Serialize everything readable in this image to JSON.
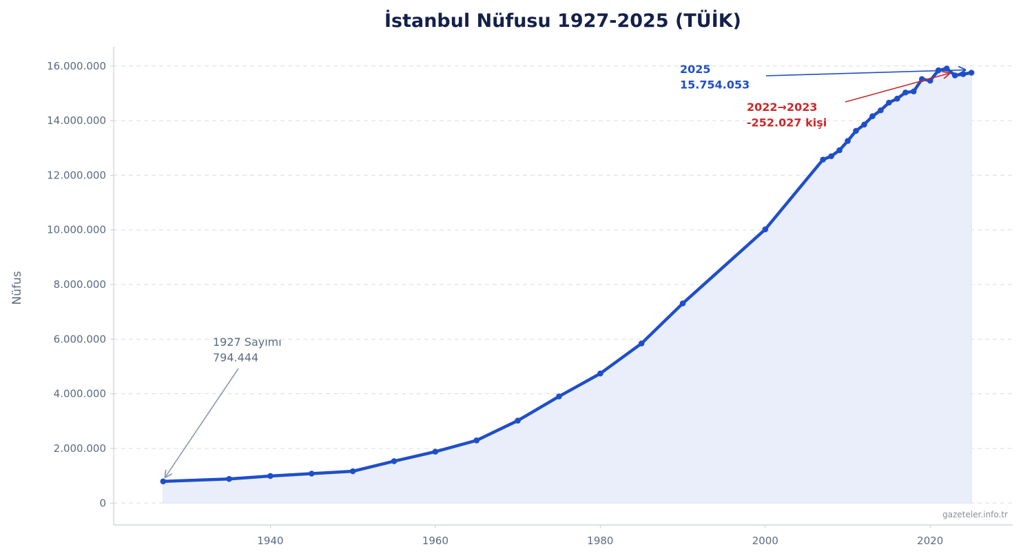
{
  "chart_data": {
    "type": "line",
    "title": "İstanbul Nüfusu 1927-2025 (TÜİK)",
    "xlabel": "",
    "ylabel": "Nüfus",
    "xlim": [
      1921,
      2030
    ],
    "ylim": [
      -800000,
      16700000
    ],
    "x_ticks": [
      1940,
      1960,
      1980,
      2000,
      2020
    ],
    "y_ticks": [
      0,
      2000000,
      4000000,
      6000000,
      8000000,
      10000000,
      12000000,
      14000000,
      16000000
    ],
    "y_tick_labels": [
      "0",
      "2.000.000",
      "4.000.000",
      "6.000.000",
      "8.000.000",
      "10.000.000",
      "12.000.000",
      "14.000.000",
      "16.000.000"
    ],
    "grid": "horizontal dashed",
    "series": [
      {
        "x": [
          1927,
          1935,
          1940,
          1945,
          1950,
          1955,
          1960,
          1965,
          1970,
          1975,
          1980,
          1985,
          1990,
          2000,
          2007,
          2008,
          2009,
          2010,
          2011,
          2012,
          2013,
          2014,
          2015,
          2016,
          2017,
          2018,
          2019,
          2020,
          2021,
          2022,
          2023,
          2024,
          2025
        ],
        "y": [
          794444,
          883599,
          991237,
          1078399,
          1166477,
          1533822,
          1882092,
          2293823,
          3019032,
          3904588,
          4741890,
          5842985,
          7309190,
          10018735,
          12573836,
          12697164,
          12915158,
          13255685,
          13624240,
          13854740,
          14160467,
          14377018,
          14657434,
          14804116,
          15029231,
          15067724,
          15519267,
          15462452,
          15840900,
          15907951,
          15655924,
          15701602,
          15754053
        ]
      }
    ],
    "annotations": [
      {
        "lines": [
          "1927 Sayımı",
          "794.444"
        ],
        "x": 1927,
        "y": 794444
      },
      {
        "lines": [
          "2025",
          "15.754.053"
        ],
        "x": 2025,
        "y": 15754053
      },
      {
        "lines": [
          "2022→2023",
          "-252.027 kişi"
        ],
        "x": 2023,
        "y": 15655924
      }
    ],
    "colors": {
      "line": "#1f4fc8",
      "fill": "#eaeefb",
      "grid": "#d6dde6",
      "axis": "#c5d0da",
      "annotation_gray": "#8a9aad",
      "annotation_blue": "#1f4fc8",
      "annotation_red": "#c92a2a"
    }
  },
  "watermark": "gazeteler.info.tr"
}
